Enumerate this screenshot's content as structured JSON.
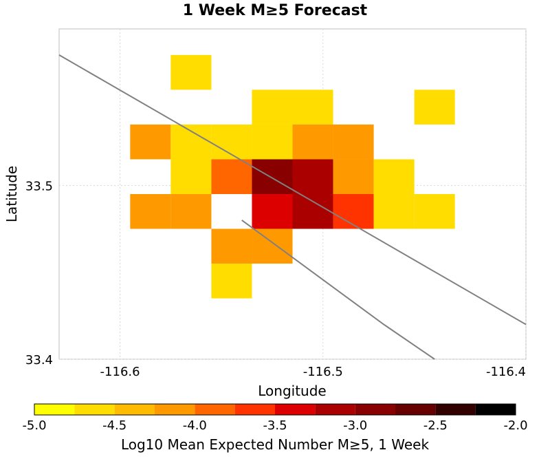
{
  "chart_data": {
    "type": "heatmap",
    "title": "1 Week M≥5 Forecast",
    "xlabel": "Longitude",
    "ylabel": "Latitude",
    "xlim": [
      -116.63,
      -116.4
    ],
    "ylim": [
      33.4,
      33.59
    ],
    "x_ticks": [
      {
        "value": -116.6,
        "label": "-116.6"
      },
      {
        "value": -116.5,
        "label": "-116.5"
      },
      {
        "value": -116.4,
        "label": "-116.4"
      }
    ],
    "y_ticks": [
      {
        "value": 33.5,
        "label": "33.5"
      },
      {
        "value": 33.4,
        "label": "33.4"
      }
    ],
    "grid": true,
    "cell_size_deg": 0.02,
    "cells": [
      {
        "lon": -116.565,
        "lat": 33.565,
        "value": -4.6
      },
      {
        "lon": -116.525,
        "lat": 33.545,
        "value": -4.6
      },
      {
        "lon": -116.505,
        "lat": 33.545,
        "value": -4.6
      },
      {
        "lon": -116.445,
        "lat": 33.545,
        "value": -4.6
      },
      {
        "lon": -116.585,
        "lat": 33.525,
        "value": -4.1
      },
      {
        "lon": -116.565,
        "lat": 33.525,
        "value": -4.6
      },
      {
        "lon": -116.545,
        "lat": 33.525,
        "value": -4.6
      },
      {
        "lon": -116.525,
        "lat": 33.525,
        "value": -4.6
      },
      {
        "lon": -116.505,
        "lat": 33.525,
        "value": -4.1
      },
      {
        "lon": -116.485,
        "lat": 33.525,
        "value": -4.1
      },
      {
        "lon": -116.565,
        "lat": 33.505,
        "value": -4.6
      },
      {
        "lon": -116.545,
        "lat": 33.505,
        "value": -3.8
      },
      {
        "lon": -116.525,
        "lat": 33.505,
        "value": -2.8
      },
      {
        "lon": -116.505,
        "lat": 33.505,
        "value": -3.1
      },
      {
        "lon": -116.485,
        "lat": 33.505,
        "value": -4.1
      },
      {
        "lon": -116.465,
        "lat": 33.505,
        "value": -4.6
      },
      {
        "lon": -116.585,
        "lat": 33.485,
        "value": -4.1
      },
      {
        "lon": -116.565,
        "lat": 33.485,
        "value": -4.1
      },
      {
        "lon": -116.525,
        "lat": 33.485,
        "value": -3.4
      },
      {
        "lon": -116.505,
        "lat": 33.485,
        "value": -3.1
      },
      {
        "lon": -116.485,
        "lat": 33.485,
        "value": -3.6
      },
      {
        "lon": -116.465,
        "lat": 33.485,
        "value": -4.6
      },
      {
        "lon": -116.445,
        "lat": 33.485,
        "value": -4.6
      },
      {
        "lon": -116.545,
        "lat": 33.465,
        "value": -4.1
      },
      {
        "lon": -116.525,
        "lat": 33.465,
        "value": -4.1
      },
      {
        "lon": -116.545,
        "lat": 33.445,
        "value": -4.6
      }
    ],
    "fault_lines": [
      {
        "points": [
          [
            -116.63,
            33.575
          ],
          [
            -116.4,
            33.42
          ]
        ]
      },
      {
        "points": [
          [
            -116.54,
            33.48
          ],
          [
            -116.47,
            33.42
          ],
          [
            -116.445,
            33.4
          ]
        ]
      }
    ],
    "fault_color": "#808080",
    "colorbar": {
      "label": "Log10 Mean Expected Number M≥5, 1 Week",
      "min": -5.0,
      "max": -2.0,
      "ticks": [
        {
          "value": -5.0,
          "label": "-5.0"
        },
        {
          "value": -4.5,
          "label": "-4.5"
        },
        {
          "value": -4.0,
          "label": "-4.0"
        },
        {
          "value": -3.5,
          "label": "-3.5"
        },
        {
          "value": -3.0,
          "label": "-3.0"
        },
        {
          "value": -2.5,
          "label": "-2.5"
        },
        {
          "value": -2.0,
          "label": "-2.0"
        }
      ],
      "colors": [
        "#ffff00",
        "#ffdd00",
        "#ffbb00",
        "#ff9900",
        "#ff6600",
        "#ff3300",
        "#dd0000",
        "#aa0000",
        "#880000",
        "#660000",
        "#330000",
        "#000000"
      ]
    }
  }
}
